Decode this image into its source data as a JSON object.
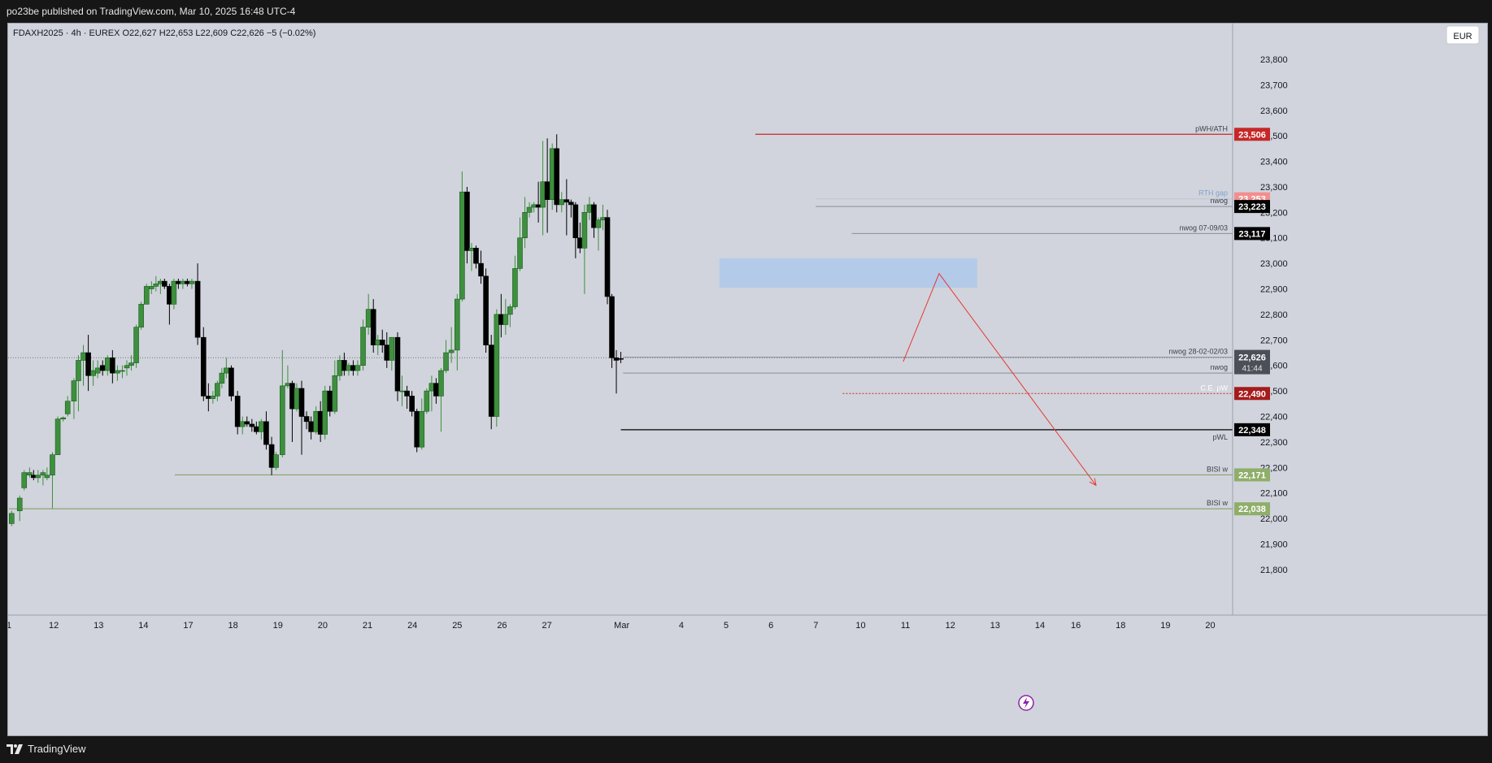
{
  "header": {
    "published": "po23be published on TradingView.com, Mar 10, 2025 16:48 UTC-4"
  },
  "footer": {
    "brand": "TradingView",
    "brand_icon": "tradingview-logo-icon"
  },
  "toolbar": {
    "currency": "EUR"
  },
  "chart_data": {
    "type": "candlestick",
    "legend": "FDAXH2025 · 4h · EUREX  O22,627  H22,653  L22,609  C22,626  −5 (−0.02%)",
    "ylim": [
      21650,
      23940
    ],
    "y_ticks": [
      21800,
      21900,
      22000,
      22100,
      22200,
      22300,
      22400,
      22500,
      22600,
      22700,
      22800,
      22900,
      23000,
      23100,
      23200,
      23300,
      23400,
      23500,
      23600,
      23700,
      23800
    ],
    "x_tick_labels": [
      "1",
      "12",
      "13",
      "14",
      "17",
      "18",
      "19",
      "20",
      "21",
      "24",
      "25",
      "26",
      "27",
      "Mar",
      "4",
      "5",
      "6",
      "7",
      "10",
      "11",
      "12",
      "13",
      "14",
      "16",
      "18",
      "19",
      "20"
    ],
    "candles": [
      {
        "o": 21980,
        "h": 22030,
        "l": 21970,
        "c": 22020
      },
      {
        "o": 22030,
        "h": 22090,
        "l": 21990,
        "c": 22080
      },
      {
        "o": 22120,
        "h": 22190,
        "l": 22110,
        "c": 22180
      },
      {
        "o": 22170,
        "h": 22200,
        "l": 22160,
        "c": 22180
      },
      {
        "o": 22170,
        "h": 22190,
        "l": 22150,
        "c": 22160
      },
      {
        "o": 22160,
        "h": 22190,
        "l": 22140,
        "c": 22170
      },
      {
        "o": 22170,
        "h": 22190,
        "l": 22130,
        "c": 22180
      },
      {
        "o": 22160,
        "h": 22200,
        "l": 22150,
        "c": 22170
      },
      {
        "o": 22170,
        "h": 22260,
        "l": 22040,
        "c": 22250
      },
      {
        "o": 22250,
        "h": 22400,
        "l": 22250,
        "c": 22390
      },
      {
        "o": 22390,
        "h": 22400,
        "l": 22380,
        "c": 22395
      },
      {
        "o": 22410,
        "h": 22480,
        "l": 22400,
        "c": 22460
      },
      {
        "o": 22460,
        "h": 22550,
        "l": 22390,
        "c": 22540
      },
      {
        "o": 22540,
        "h": 22640,
        "l": 22420,
        "c": 22620
      },
      {
        "o": 22620,
        "h": 22680,
        "l": 22520,
        "c": 22650
      },
      {
        "o": 22650,
        "h": 22720,
        "l": 22500,
        "c": 22560
      },
      {
        "o": 22560,
        "h": 22620,
        "l": 22520,
        "c": 22580
      },
      {
        "o": 22570,
        "h": 22620,
        "l": 22550,
        "c": 22590
      },
      {
        "o": 22600,
        "h": 22620,
        "l": 22560,
        "c": 22580
      },
      {
        "o": 22580,
        "h": 22640,
        "l": 22560,
        "c": 22630
      },
      {
        "o": 22630,
        "h": 22660,
        "l": 22530,
        "c": 22570
      },
      {
        "o": 22570,
        "h": 22600,
        "l": 22540,
        "c": 22580
      },
      {
        "o": 22580,
        "h": 22600,
        "l": 22550,
        "c": 22580
      },
      {
        "o": 22590,
        "h": 22620,
        "l": 22560,
        "c": 22600
      },
      {
        "o": 22600,
        "h": 22640,
        "l": 22580,
        "c": 22610
      },
      {
        "o": 22610,
        "h": 22760,
        "l": 22590,
        "c": 22750
      },
      {
        "o": 22750,
        "h": 22850,
        "l": 22740,
        "c": 22840
      },
      {
        "o": 22840,
        "h": 22920,
        "l": 22840,
        "c": 22910
      },
      {
        "o": 22900,
        "h": 22930,
        "l": 22880,
        "c": 22910
      },
      {
        "o": 22910,
        "h": 22950,
        "l": 22890,
        "c": 22920
      },
      {
        "o": 22920,
        "h": 22940,
        "l": 22880,
        "c": 22930
      },
      {
        "o": 22930,
        "h": 22940,
        "l": 22900,
        "c": 22910
      },
      {
        "o": 22910,
        "h": 22920,
        "l": 22760,
        "c": 22840
      },
      {
        "o": 22840,
        "h": 22940,
        "l": 22820,
        "c": 22930
      },
      {
        "o": 22930,
        "h": 22940,
        "l": 22900,
        "c": 22920
      },
      {
        "o": 22920,
        "h": 22940,
        "l": 22900,
        "c": 22930
      },
      {
        "o": 22930,
        "h": 22940,
        "l": 22910,
        "c": 22920
      },
      {
        "o": 22920,
        "h": 22940,
        "l": 22900,
        "c": 22930
      },
      {
        "o": 22930,
        "h": 23000,
        "l": 22680,
        "c": 22710
      },
      {
        "o": 22710,
        "h": 22750,
        "l": 22460,
        "c": 22480
      },
      {
        "o": 22480,
        "h": 22530,
        "l": 22420,
        "c": 22470
      },
      {
        "o": 22470,
        "h": 22500,
        "l": 22450,
        "c": 22480
      },
      {
        "o": 22480,
        "h": 22540,
        "l": 22460,
        "c": 22530
      },
      {
        "o": 22530,
        "h": 22590,
        "l": 22510,
        "c": 22570
      },
      {
        "o": 22570,
        "h": 22630,
        "l": 22550,
        "c": 22590
      },
      {
        "o": 22590,
        "h": 22600,
        "l": 22460,
        "c": 22480
      },
      {
        "o": 22480,
        "h": 22500,
        "l": 22330,
        "c": 22360
      },
      {
        "o": 22360,
        "h": 22400,
        "l": 22330,
        "c": 22380
      },
      {
        "o": 22380,
        "h": 22400,
        "l": 22360,
        "c": 22370
      },
      {
        "o": 22370,
        "h": 22390,
        "l": 22340,
        "c": 22360
      },
      {
        "o": 22360,
        "h": 22380,
        "l": 22330,
        "c": 22340
      },
      {
        "o": 22340,
        "h": 22390,
        "l": 22310,
        "c": 22380
      },
      {
        "o": 22380,
        "h": 22420,
        "l": 22270,
        "c": 22290
      },
      {
        "o": 22290,
        "h": 22320,
        "l": 22170,
        "c": 22200
      },
      {
        "o": 22200,
        "h": 22260,
        "l": 22190,
        "c": 22250
      },
      {
        "o": 22250,
        "h": 22660,
        "l": 22240,
        "c": 22520
      },
      {
        "o": 22520,
        "h": 22600,
        "l": 22510,
        "c": 22530
      },
      {
        "o": 22530,
        "h": 22540,
        "l": 22300,
        "c": 22430
      },
      {
        "o": 22430,
        "h": 22530,
        "l": 22420,
        "c": 22510
      },
      {
        "o": 22510,
        "h": 22540,
        "l": 22250,
        "c": 22400
      },
      {
        "o": 22400,
        "h": 22420,
        "l": 22350,
        "c": 22380
      },
      {
        "o": 22380,
        "h": 22400,
        "l": 22310,
        "c": 22340
      },
      {
        "o": 22340,
        "h": 22440,
        "l": 22330,
        "c": 22420
      },
      {
        "o": 22420,
        "h": 22460,
        "l": 22300,
        "c": 22330
      },
      {
        "o": 22330,
        "h": 22520,
        "l": 22310,
        "c": 22500
      },
      {
        "o": 22500,
        "h": 22520,
        "l": 22400,
        "c": 22420
      },
      {
        "o": 22420,
        "h": 22620,
        "l": 22410,
        "c": 22560
      },
      {
        "o": 22560,
        "h": 22640,
        "l": 22540,
        "c": 22620
      },
      {
        "o": 22620,
        "h": 22650,
        "l": 22560,
        "c": 22580
      },
      {
        "o": 22580,
        "h": 22610,
        "l": 22560,
        "c": 22600
      },
      {
        "o": 22600,
        "h": 22620,
        "l": 22560,
        "c": 22580
      },
      {
        "o": 22580,
        "h": 22620,
        "l": 22560,
        "c": 22600
      },
      {
        "o": 22600,
        "h": 22780,
        "l": 22580,
        "c": 22750
      },
      {
        "o": 22750,
        "h": 22880,
        "l": 22720,
        "c": 22820
      },
      {
        "o": 22820,
        "h": 22860,
        "l": 22650,
        "c": 22680
      },
      {
        "o": 22680,
        "h": 22720,
        "l": 22640,
        "c": 22700
      },
      {
        "o": 22700,
        "h": 22740,
        "l": 22650,
        "c": 22680
      },
      {
        "o": 22680,
        "h": 22730,
        "l": 22590,
        "c": 22620
      },
      {
        "o": 22620,
        "h": 22700,
        "l": 22580,
        "c": 22710
      },
      {
        "o": 22710,
        "h": 22730,
        "l": 22460,
        "c": 22500
      },
      {
        "o": 22500,
        "h": 22560,
        "l": 22440,
        "c": 22500
      },
      {
        "o": 22500,
        "h": 22520,
        "l": 22430,
        "c": 22480
      },
      {
        "o": 22480,
        "h": 22500,
        "l": 22400,
        "c": 22420
      },
      {
        "o": 22420,
        "h": 22430,
        "l": 22260,
        "c": 22280
      },
      {
        "o": 22280,
        "h": 22470,
        "l": 22270,
        "c": 22420
      },
      {
        "o": 22420,
        "h": 22510,
        "l": 22410,
        "c": 22500
      },
      {
        "o": 22500,
        "h": 22560,
        "l": 22420,
        "c": 22530
      },
      {
        "o": 22530,
        "h": 22550,
        "l": 22450,
        "c": 22480
      },
      {
        "o": 22480,
        "h": 22590,
        "l": 22340,
        "c": 22580
      },
      {
        "o": 22580,
        "h": 22700,
        "l": 22570,
        "c": 22650
      },
      {
        "o": 22650,
        "h": 22750,
        "l": 22610,
        "c": 22660
      },
      {
        "o": 22660,
        "h": 22880,
        "l": 22580,
        "c": 22860
      },
      {
        "o": 22860,
        "h": 23360,
        "l": 22850,
        "c": 23280
      },
      {
        "o": 23280,
        "h": 23300,
        "l": 23000,
        "c": 23050
      },
      {
        "o": 23050,
        "h": 23080,
        "l": 22970,
        "c": 23060
      },
      {
        "o": 23060,
        "h": 23070,
        "l": 22980,
        "c": 23000
      },
      {
        "o": 23000,
        "h": 23050,
        "l": 22920,
        "c": 22950
      },
      {
        "o": 22950,
        "h": 22980,
        "l": 22650,
        "c": 22680
      },
      {
        "o": 22680,
        "h": 22720,
        "l": 22350,
        "c": 22400
      },
      {
        "o": 22400,
        "h": 22820,
        "l": 22360,
        "c": 22800
      },
      {
        "o": 22800,
        "h": 22880,
        "l": 22710,
        "c": 22760
      },
      {
        "o": 22760,
        "h": 22860,
        "l": 22720,
        "c": 22800
      },
      {
        "o": 22800,
        "h": 22840,
        "l": 22750,
        "c": 22830
      },
      {
        "o": 22830,
        "h": 23030,
        "l": 22820,
        "c": 22980
      },
      {
        "o": 22980,
        "h": 23180,
        "l": 22970,
        "c": 23100
      },
      {
        "o": 23100,
        "h": 23260,
        "l": 23060,
        "c": 23200
      },
      {
        "o": 23200,
        "h": 23240,
        "l": 23180,
        "c": 23220
      },
      {
        "o": 23220,
        "h": 23240,
        "l": 23200,
        "c": 23230
      },
      {
        "o": 23230,
        "h": 23320,
        "l": 23160,
        "c": 23220
      },
      {
        "o": 23220,
        "h": 23480,
        "l": 23110,
        "c": 23320
      },
      {
        "o": 23320,
        "h": 23490,
        "l": 23120,
        "c": 23250
      },
      {
        "o": 23250,
        "h": 23470,
        "l": 23210,
        "c": 23450
      },
      {
        "o": 23450,
        "h": 23506,
        "l": 23200,
        "c": 23230
      },
      {
        "o": 23230,
        "h": 23280,
        "l": 23200,
        "c": 23250
      },
      {
        "o": 23250,
        "h": 23330,
        "l": 23110,
        "c": 23240
      },
      {
        "o": 23240,
        "h": 23250,
        "l": 23180,
        "c": 23230
      },
      {
        "o": 23230,
        "h": 23240,
        "l": 23020,
        "c": 23100
      },
      {
        "o": 23100,
        "h": 23160,
        "l": 23040,
        "c": 23060
      },
      {
        "o": 23060,
        "h": 23230,
        "l": 22880,
        "c": 23200
      },
      {
        "o": 23200,
        "h": 23260,
        "l": 23170,
        "c": 23230
      },
      {
        "o": 23230,
        "h": 23240,
        "l": 23100,
        "c": 23140
      },
      {
        "o": 23140,
        "h": 23180,
        "l": 23050,
        "c": 23170
      },
      {
        "o": 23170,
        "h": 23230,
        "l": 23130,
        "c": 23180
      },
      {
        "o": 23180,
        "h": 23210,
        "l": 22840,
        "c": 22870
      },
      {
        "o": 22870,
        "h": 22880,
        "l": 22590,
        "c": 22630
      },
      {
        "o": 22630,
        "h": 22660,
        "l": 22490,
        "c": 22620
      },
      {
        "o": 22627,
        "h": 22653,
        "l": 22609,
        "c": 22626
      }
    ],
    "x_positions": [
      1.2,
      4.8,
      6.8,
      9.2,
      11,
      13,
      15.2,
      17,
      19.4,
      21.8,
      24.2,
      26.2,
      29,
      31,
      33.2,
      35.4,
      37.6,
      39.6,
      41.8,
      44,
      46.2,
      48.4,
      50.6,
      52.6,
      54.6,
      56.8,
      59,
      61.4,
      63.6,
      65.6,
      67.6,
      69.4,
      71.6,
      73.6,
      75.6,
      77.6,
      79.6,
      81.6,
      84.2,
      86.8,
      89,
      91,
      93,
      95,
      97,
      99.2,
      102,
      104.2,
      106.2,
      108.4,
      110.4,
      112.6,
      114.8,
      117.2,
      119.2,
      122,
      124.4,
      126.4,
      128.4,
      130.6,
      132.8,
      134.8,
      137,
      139,
      141,
      143.2,
      145.4,
      147.6,
      149.6,
      151.6,
      153.6,
      155.6,
      158,
      160.4,
      162.6,
      164.6,
      166.6,
      168.6,
      170.8,
      173.4,
      175.4,
      177.6,
      179.8,
      182,
      184.2,
      186.4,
      188.6,
      190.6,
      192.8,
      195,
      197.4,
      200,
      202.2,
      204.4,
      206.4,
      208.4,
      210.6,
      212.8,
      215.2,
      217.6,
      219.6,
      221.6,
      223.6,
      225.8,
      228,
      230.2,
      232.2,
      234.2,
      236.2,
      238.2,
      240.2,
      242.4,
      244.4,
      246.6,
      248.8,
      250.8,
      252.8,
      254.8,
      256.8,
      259,
      261,
      263,
      265,
      267,
      269,
      271,
      273,
      275.4,
      277.6,
      279.6
    ],
    "x_ticks_pos": [
      0,
      20,
      40,
      60,
      80,
      100,
      120,
      140,
      160,
      180,
      200,
      220,
      240,
      273.4,
      300,
      320,
      340,
      360,
      380,
      400,
      420,
      440,
      460,
      476,
      496,
      516,
      536
    ],
    "levels": [
      {
        "label": "pWH/ATH",
        "value": 23506,
        "color": "#c62828",
        "tag_color": "#c62828",
        "from": 333
      },
      {
        "label": "RTH gap",
        "value": 23253,
        "color": "#c0c3cb",
        "tag_color": "#f28e8e",
        "from": 360
      },
      {
        "label": "nwog",
        "value": 23223,
        "color": "#8a8d94",
        "tag_color": "#000000",
        "from": 360
      },
      {
        "label": "nwog 07-09/03",
        "value": 23117,
        "color": "#8a8d94",
        "tag_color": "#000000",
        "from": 376
      },
      {
        "label": "nwog 28-02-02/03",
        "value": 22632,
        "color": "#8a8d94",
        "tag_color": "",
        "from": 274
      },
      {
        "label": "nwog",
        "value": 22570,
        "color": "#8a8d94",
        "tag_color": "",
        "from": 274
      },
      {
        "label": "C.E. pW",
        "value": 22490,
        "color": "#c62828",
        "tag_color": "#a51b1b",
        "from": 372
      },
      {
        "label": "pWL",
        "value": 22348,
        "color": "#000000",
        "tag_color": "#000000",
        "from": 273
      },
      {
        "label": "BISI w",
        "value": 22171,
        "color": "#7d9a5b",
        "tag_color": "#8fae6a",
        "from": 74
      },
      {
        "label": "BISI w",
        "value": 22038,
        "color": "#7d9a5b",
        "tag_color": "#8fae6a",
        "from": 0
      }
    ],
    "last_price": {
      "value": 22626,
      "countdown": "41:44"
    },
    "fvg_zone": {
      "top": 23020,
      "bottom": 22905,
      "x1": 317,
      "x2": 432
    },
    "projection": [
      {
        "x": 399,
        "y": 22615
      },
      {
        "x": 415,
        "y": 22960
      },
      {
        "x": 485,
        "y": 22130
      }
    ],
    "prior_close_line": 22630,
    "grid": false
  }
}
